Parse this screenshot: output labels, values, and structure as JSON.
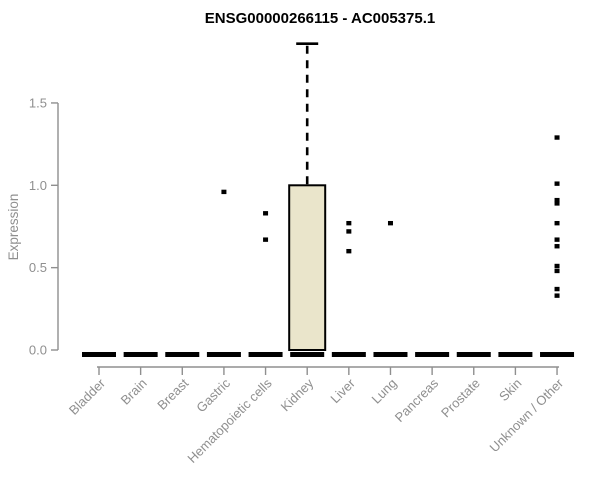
{
  "chart_data": {
    "type": "boxplot",
    "title": "ENSG00000266115 - AC005375.1",
    "ylabel": "Expression",
    "xlabel": "",
    "yticks": [
      "0.0",
      "0.5",
      "1.0",
      "1.5"
    ],
    "ylim": [
      0,
      1.9
    ],
    "grid": false,
    "legend": false,
    "categories": [
      "Bladder",
      "Brain",
      "Breast",
      "Gastric",
      "Hematopoietic cells",
      "Kidney",
      "Liver",
      "Lung",
      "Pancreas",
      "Prostate",
      "Skin",
      "Unknown / Other"
    ],
    "boxes": [
      {
        "category": "Bladder",
        "median": 0,
        "q1": 0,
        "q3": 0,
        "whisker_low": 0,
        "whisker_high": 0,
        "outliers": []
      },
      {
        "category": "Brain",
        "median": 0,
        "q1": 0,
        "q3": 0,
        "whisker_low": 0,
        "whisker_high": 0,
        "outliers": []
      },
      {
        "category": "Breast",
        "median": 0,
        "q1": 0,
        "q3": 0,
        "whisker_low": 0,
        "whisker_high": 0,
        "outliers": []
      },
      {
        "category": "Gastric",
        "median": 0,
        "q1": 0,
        "q3": 0,
        "whisker_low": 0,
        "whisker_high": 0,
        "outliers": [
          0.96
        ]
      },
      {
        "category": "Hematopoietic cells",
        "median": 0,
        "q1": 0,
        "q3": 0,
        "whisker_low": 0,
        "whisker_high": 0,
        "outliers": [
          0.83,
          0.67
        ]
      },
      {
        "category": "Kidney",
        "median": 0,
        "q1": 0,
        "q3": 1.0,
        "whisker_low": 0,
        "whisker_high": 1.86,
        "outliers": []
      },
      {
        "category": "Liver",
        "median": 0,
        "q1": 0,
        "q3": 0,
        "whisker_low": 0,
        "whisker_high": 0,
        "outliers": [
          0.77,
          0.72,
          0.6
        ]
      },
      {
        "category": "Lung",
        "median": 0,
        "q1": 0,
        "q3": 0,
        "whisker_low": 0,
        "whisker_high": 0,
        "outliers": [
          0.77
        ]
      },
      {
        "category": "Pancreas",
        "median": 0,
        "q1": 0,
        "q3": 0,
        "whisker_low": 0,
        "whisker_high": 0,
        "outliers": []
      },
      {
        "category": "Prostate",
        "median": 0,
        "q1": 0,
        "q3": 0,
        "whisker_low": 0,
        "whisker_high": 0,
        "outliers": []
      },
      {
        "category": "Skin",
        "median": 0,
        "q1": 0,
        "q3": 0,
        "whisker_low": 0,
        "whisker_high": 0,
        "outliers": []
      },
      {
        "category": "Unknown / Other",
        "median": 0,
        "q1": 0,
        "q3": 0,
        "whisker_low": 0,
        "whisker_high": 0,
        "outliers": [
          1.29,
          1.01,
          0.91,
          0.89,
          0.77,
          0.67,
          0.63,
          0.51,
          0.48,
          0.37,
          0.33
        ]
      }
    ],
    "colors": {
      "background": "#ffffff",
      "box_fill": "#EAE5CB",
      "box_border": "#000000",
      "median": "#000000",
      "point": "#000000",
      "axis": "#8f8f8f",
      "tick_text": "#8f8f8f",
      "title_text": "#000000"
    }
  }
}
